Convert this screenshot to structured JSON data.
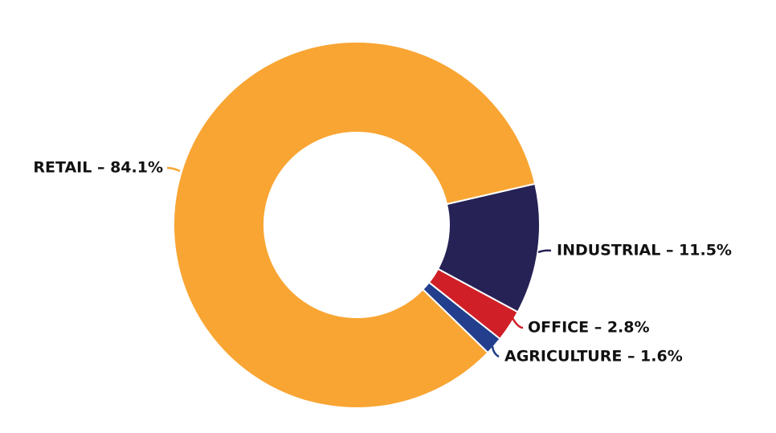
{
  "chart_data": {
    "type": "donut",
    "values": [
      11.5,
      2.8,
      1.6,
      84.1
    ],
    "value_labels": [
      "INDUSTRIAL – 11.5%",
      "OFFICE – 2.8%",
      "AGRICULTURE – 1.6%",
      "RETAIL – 84.1%"
    ],
    "colors": [
      "#262255",
      "#d01f27",
      "#223e8c",
      "#f9a533"
    ]
  }
}
